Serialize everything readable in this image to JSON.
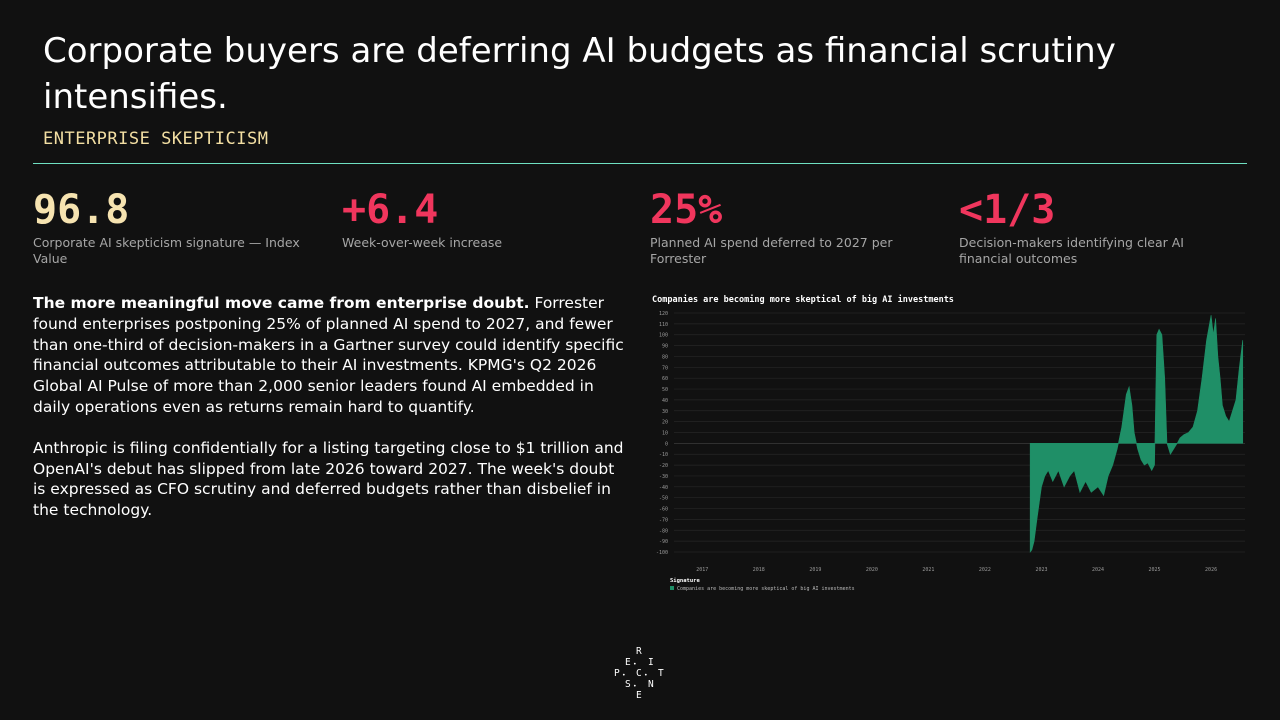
{
  "header": {
    "title": "Corporate buyers are deferring AI budgets as financial scrutiny intensifies.",
    "subtitle": "ENTERPRISE SKEPTICISM"
  },
  "stats": [
    {
      "value": "96.8",
      "label": "Corporate AI skepticism signature — Index Value",
      "color": "#f6e3b0"
    },
    {
      "value": "+6.4",
      "label": "Week-over-week increase",
      "color": "#f0365d"
    },
    {
      "value": "25%",
      "label": "Planned AI spend deferred to 2027 per Forrester",
      "color": "#f0365d"
    },
    {
      "value": "<1/3",
      "label": "Decision-makers identifying clear AI financial outcomes",
      "color": "#f0365d"
    }
  ],
  "body": {
    "lead": "The more meaningful move came from enterprise doubt.",
    "p1_rest": " Forrester found enterprises postponing 25% of planned AI spend to 2027, and fewer than one-third of decision-makers in a Gartner survey could identify specific financial outcomes attributable to their AI investments. KPMG's Q2 2026 Global AI Pulse of more than 2,000 senior leaders found AI embedded in daily operations even as returns remain hard to quantify.",
    "p2": "Anthropic is filing confidentially for a listing targeting close to $1 trillion and OpenAI's debut has slipped from late 2026 toward 2027. The week's doubt is expressed as CFO scrutiny and deferred budgets rather than disbelief in the technology."
  },
  "logo": {
    "letters": [
      "R",
      "E",
      "I",
      "P",
      "C",
      "T",
      "S",
      "N",
      "E"
    ]
  },
  "chart_data": {
    "type": "area",
    "title": "Companies are becoming more skeptical of big AI investments",
    "color": "#1f8f67",
    "ylim": [
      -100,
      120
    ],
    "yticks": [
      120,
      110,
      100,
      90,
      80,
      70,
      60,
      50,
      40,
      30,
      20,
      10,
      0,
      -10,
      -20,
      -30,
      -40,
      -50,
      -60,
      -70,
      -80,
      -90,
      -100
    ],
    "xticks": [
      "2017",
      "2018",
      "2019",
      "2020",
      "2021",
      "2022",
      "2023",
      "2024",
      "2025",
      "2026"
    ],
    "xlim": [
      2016.5,
      2026.6
    ],
    "legend_title": "Signature",
    "series": [
      {
        "name": "Companies are becoming more skeptical of big AI investments",
        "x": [
          2022.8,
          2022.83,
          2022.87,
          2022.92,
          2022.96,
          2023.0,
          2023.06,
          2023.12,
          2023.2,
          2023.3,
          2023.4,
          2023.5,
          2023.58,
          2023.68,
          2023.78,
          2023.88,
          2024.0,
          2024.1,
          2024.18,
          2024.26,
          2024.34,
          2024.42,
          2024.5,
          2024.55,
          2024.6,
          2024.64,
          2024.7,
          2024.76,
          2024.82,
          2024.88,
          2024.95,
          2025.0,
          2025.04,
          2025.08,
          2025.13,
          2025.18,
          2025.22,
          2025.28,
          2025.34,
          2025.4,
          2025.45,
          2025.52,
          2025.6,
          2025.68,
          2025.76,
          2025.84,
          2025.92,
          2026.0,
          2026.04,
          2026.08,
          2026.12,
          2026.16,
          2026.2,
          2026.26,
          2026.32,
          2026.38,
          2026.44,
          2026.5,
          2026.56
        ],
        "values": [
          -100,
          -98,
          -90,
          -70,
          -55,
          -40,
          -30,
          -25,
          -35,
          -25,
          -40,
          -30,
          -25,
          -45,
          -35,
          -45,
          -40,
          -48,
          -30,
          -20,
          -5,
          15,
          45,
          52,
          35,
          10,
          -5,
          -15,
          -20,
          -18,
          -25,
          -20,
          100,
          105,
          100,
          60,
          0,
          -10,
          -5,
          0,
          5,
          8,
          10,
          15,
          30,
          60,
          95,
          118,
          100,
          115,
          80,
          60,
          35,
          25,
          20,
          30,
          40,
          70,
          95
        ]
      }
    ]
  }
}
